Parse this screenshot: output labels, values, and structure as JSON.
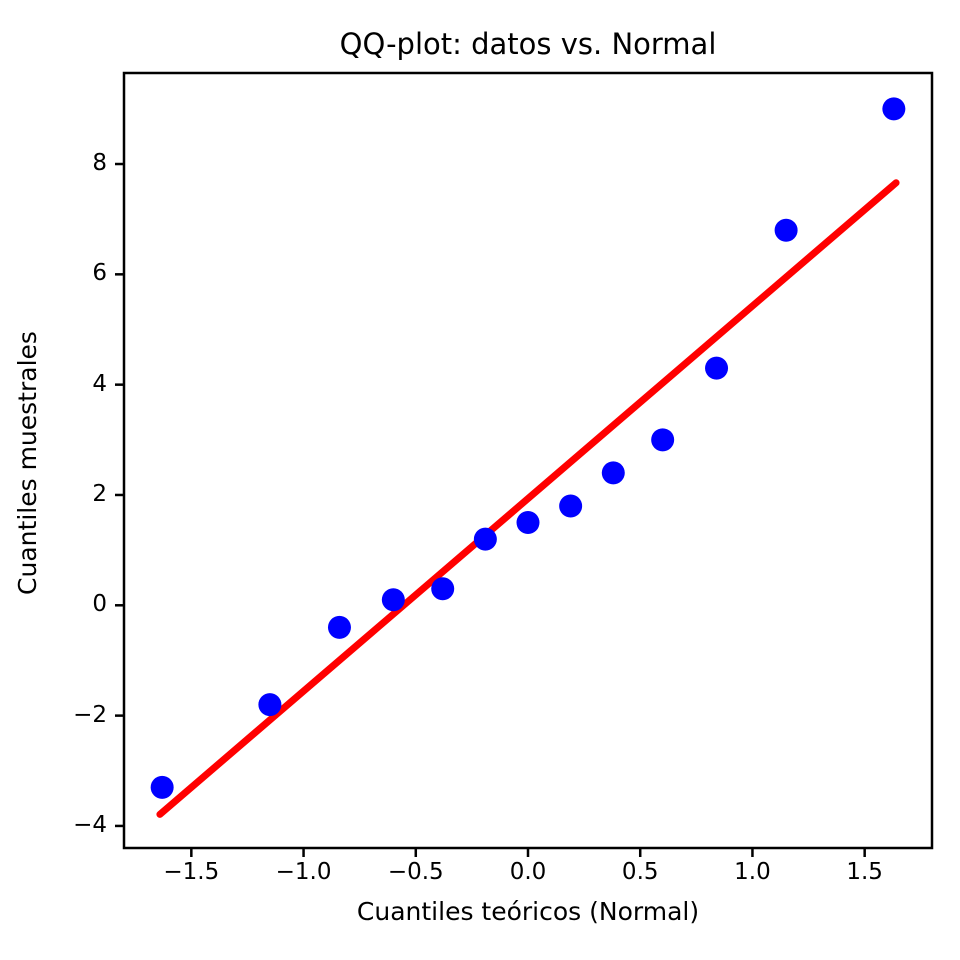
{
  "chart_data": {
    "type": "scatter",
    "title": "QQ-plot: datos vs. Normal",
    "xlabel": "Cuantiles teóricos (Normal)",
    "ylabel": "Cuantiles muestrales",
    "xlim": [
      -1.8,
      1.8
    ],
    "ylim": [
      -4.4,
      9.65
    ],
    "x_ticks": [
      -1.5,
      -1.0,
      -0.5,
      0.0,
      0.5,
      1.0,
      1.5
    ],
    "x_tick_labels": [
      "−1.5",
      "−1.0",
      "−0.5",
      "0.0",
      "0.5",
      "1.0",
      "1.5"
    ],
    "y_ticks": [
      -4,
      -2,
      0,
      2,
      4,
      6,
      8
    ],
    "y_tick_labels": [
      "−4",
      "−2",
      "0",
      "2",
      "4",
      "6",
      "8"
    ],
    "grid": false,
    "legend": null,
    "background_color": "#ffffff",
    "axis_color": "#000000",
    "series": [
      {
        "name": "linea-ajuste",
        "type": "line",
        "color": "#ff0000",
        "points": [
          {
            "x": -1.64,
            "y": -3.79
          },
          {
            "x": 1.64,
            "y": 7.66
          }
        ]
      },
      {
        "name": "datos",
        "type": "scatter",
        "marker": "circle",
        "color": "#0000ff",
        "points": [
          {
            "x": -1.63,
            "y": -3.3
          },
          {
            "x": -1.15,
            "y": -1.8
          },
          {
            "x": -0.84,
            "y": -0.4
          },
          {
            "x": -0.6,
            "y": 0.1
          },
          {
            "x": -0.38,
            "y": 0.3
          },
          {
            "x": -0.19,
            "y": 1.2
          },
          {
            "x": 0.0,
            "y": 1.5
          },
          {
            "x": 0.19,
            "y": 1.8
          },
          {
            "x": 0.38,
            "y": 2.4
          },
          {
            "x": 0.6,
            "y": 3.0
          },
          {
            "x": 0.84,
            "y": 4.3
          },
          {
            "x": 1.15,
            "y": 6.8
          },
          {
            "x": 1.63,
            "y": 9.0
          }
        ]
      }
    ]
  }
}
